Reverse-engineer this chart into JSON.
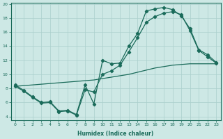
{
  "xlabel": "Humidex (Indice chaleur)",
  "background_color": "#cde8e5",
  "grid_color": "#aacfcc",
  "line_color": "#1a6b5a",
  "xlim": [
    -0.5,
    23.5
  ],
  "ylim": [
    3.5,
    20.2
  ],
  "xticks": [
    0,
    1,
    2,
    3,
    4,
    5,
    6,
    7,
    8,
    9,
    10,
    11,
    12,
    13,
    14,
    15,
    16,
    17,
    18,
    19,
    20,
    21,
    22,
    23
  ],
  "yticks": [
    4,
    6,
    8,
    10,
    12,
    14,
    16,
    18,
    20
  ],
  "series1_y": [
    8.5,
    7.7,
    6.8,
    6.0,
    6.1,
    4.8,
    4.9,
    4.3,
    8.5,
    5.8,
    12.0,
    11.5,
    11.6,
    14.0,
    15.8,
    19.0,
    19.3,
    19.5,
    19.2,
    18.3,
    16.5,
    13.5,
    12.8,
    11.7
  ],
  "series2_y": [
    8.3,
    7.6,
    6.7,
    5.9,
    6.0,
    4.7,
    4.8,
    4.2,
    7.8,
    7.5,
    10.0,
    10.5,
    11.3,
    13.2,
    15.2,
    17.4,
    18.2,
    18.7,
    18.9,
    18.5,
    16.2,
    13.4,
    12.5,
    11.6
  ],
  "lower_y": [
    8.3,
    8.4,
    8.5,
    8.6,
    8.7,
    8.8,
    8.9,
    9.0,
    9.1,
    9.2,
    9.4,
    9.6,
    9.8,
    10.0,
    10.3,
    10.6,
    10.9,
    11.1,
    11.3,
    11.4,
    11.5,
    11.5,
    11.5,
    11.5
  ],
  "xlabel_fontsize": 5.5,
  "tick_fontsize": 4.5,
  "linewidth": 0.9,
  "markersize": 2.2
}
